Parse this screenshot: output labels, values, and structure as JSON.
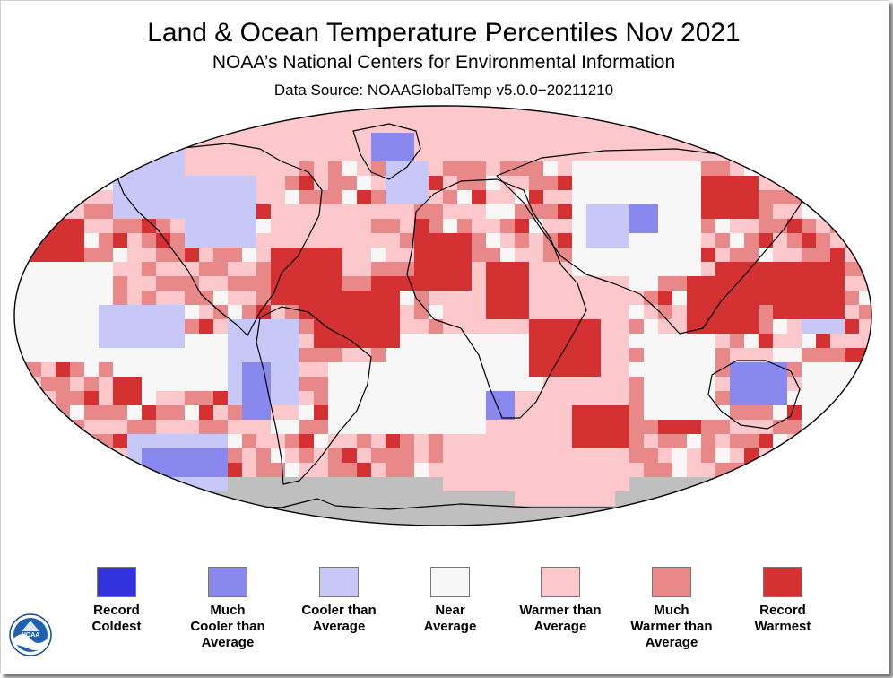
{
  "header": {
    "title": "Land & Ocean Temperature Percentiles Nov 2021",
    "subtitle": "NOAA’s National Centers for Environmental Information",
    "source": "Data Source: NOAAGlobalTemp v5.0.0−20211210"
  },
  "colors": {
    "record_coldest": "#3333dd",
    "much_cooler": "#8888ee",
    "cooler": "#c8c8f8",
    "near": "#f7f7f7",
    "warmer": "#fcc8cc",
    "much_warmer": "#e88888",
    "record_warmest": "#d43232",
    "no_data": "#bfbfbf"
  },
  "legend": [
    {
      "key": "record_coldest",
      "label": "Record\nColdest"
    },
    {
      "key": "much_cooler",
      "label": "Much\nCooler than\nAverage"
    },
    {
      "key": "cooler",
      "label": "Cooler than\nAverage"
    },
    {
      "key": "near",
      "label": "Near\nAverage"
    },
    {
      "key": "warmer",
      "label": "Warmer than\nAverage"
    },
    {
      "key": "much_warmer",
      "label": "Much\nWarmer than\nAverage"
    },
    {
      "key": "record_warmest",
      "label": "Record\nWarmest"
    }
  ],
  "logo_text": "NOAA"
}
